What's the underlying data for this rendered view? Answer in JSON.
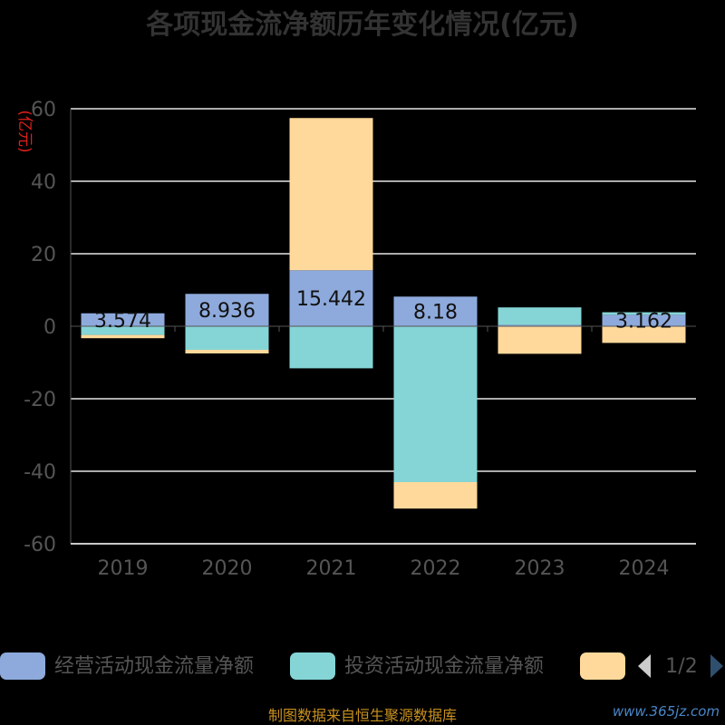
{
  "chart_data": {
    "type": "bar",
    "stacked": true,
    "title": "各项现金流净额历年变化情况(亿元)",
    "unit_label": "(亿元)",
    "categories": [
      "2019",
      "2020",
      "2021",
      "2022",
      "2023",
      "2024"
    ],
    "ylim": [
      -60,
      60
    ],
    "yticks": [
      60,
      40,
      20,
      0,
      -20,
      -40,
      -60
    ],
    "grid": true,
    "series": [
      {
        "name": "经营活动现金流量净额",
        "color": "#8eaadc",
        "values": [
          3.574,
          8.936,
          15.442,
          8.18,
          0.4,
          3.162
        ],
        "labels": [
          "3.574",
          "8.936",
          "15.442",
          "8.18",
          "",
          "3.162"
        ]
      },
      {
        "name": "投资活动现金流量净额",
        "color": "#85d5d6",
        "values": [
          -2.4,
          -6.5,
          -11.6,
          -43,
          4.8,
          0.7
        ]
      },
      {
        "name": "",
        "color": "#ffd99b",
        "values": [
          -0.9,
          -1.0,
          42.0,
          -7.3,
          -7.6,
          -4.6
        ]
      }
    ],
    "legend_placement": "bottom",
    "legend_page": "1/2"
  },
  "footer": {
    "source": "制图数据来自恒生聚源数据库",
    "watermark": "www.365jz.com"
  }
}
